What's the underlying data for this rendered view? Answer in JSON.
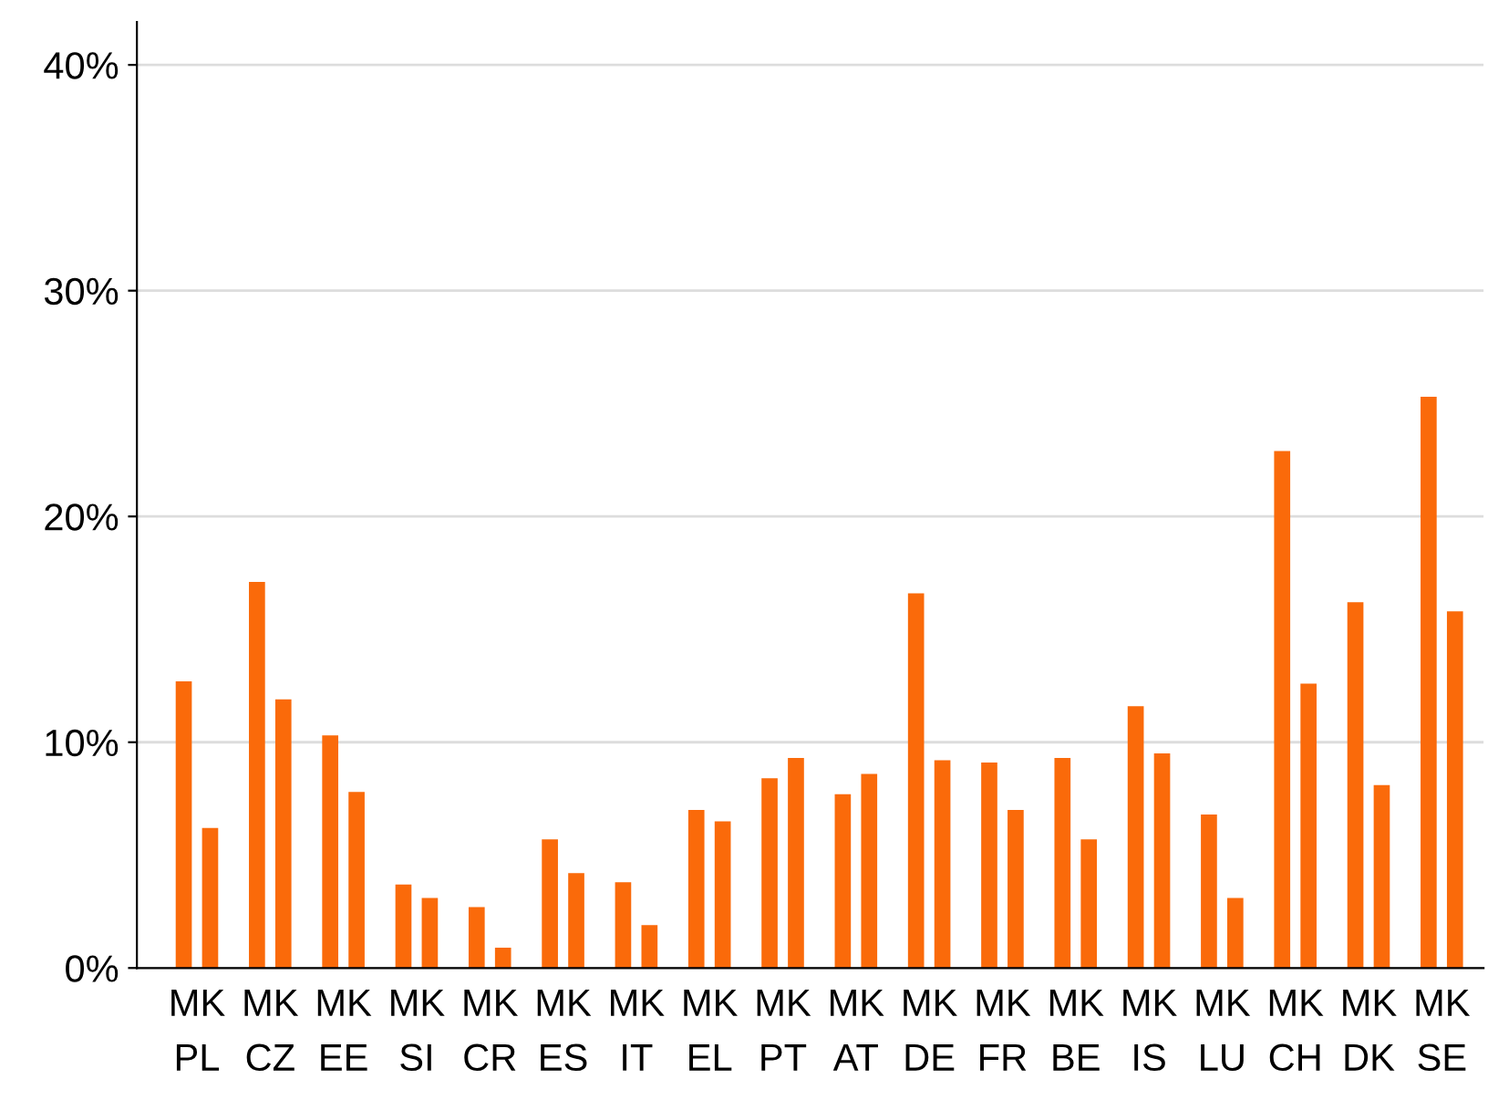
{
  "chart_data": {
    "type": "bar",
    "categories": [
      "MK\nPL",
      "MK\nCZ",
      "MK\nEE",
      "MK\nSI",
      "MK\nCR",
      "MK\nES",
      "MK\nIT",
      "MK\nEL",
      "MK\nPT",
      "MK\nAT",
      "MK\nDE",
      "MK\nFR",
      "MK\nBE",
      "MK\nIS",
      "MK\nLU",
      "MK\nCH",
      "MK\nDK",
      "MK\nSE"
    ],
    "series": [
      {
        "color": "#fa6a0a",
        "values": [
          12.7,
          17.1,
          10.3,
          3.7,
          2.7,
          5.7,
          3.8,
          7.0,
          8.4,
          7.7,
          16.6,
          9.1,
          9.3,
          11.6,
          6.8,
          22.9,
          16.2,
          25.3
        ]
      },
      {
        "color": "#fa6a0a",
        "values": [
          6.2,
          11.9,
          7.8,
          3.1,
          0.9,
          4.2,
          1.9,
          6.5,
          9.3,
          8.6,
          9.2,
          7.0,
          5.7,
          9.5,
          3.1,
          12.6,
          8.1,
          15.8
        ]
      }
    ],
    "ylim": [
      0,
      41.9
    ],
    "yticks": [
      {
        "value": 0,
        "label": "0%"
      },
      {
        "value": 10,
        "label": "10%"
      },
      {
        "value": 20,
        "label": "20%"
      },
      {
        "value": 30,
        "label": "30%"
      },
      {
        "value": 40,
        "label": "40%"
      }
    ],
    "grid": "y",
    "legend": false
  }
}
